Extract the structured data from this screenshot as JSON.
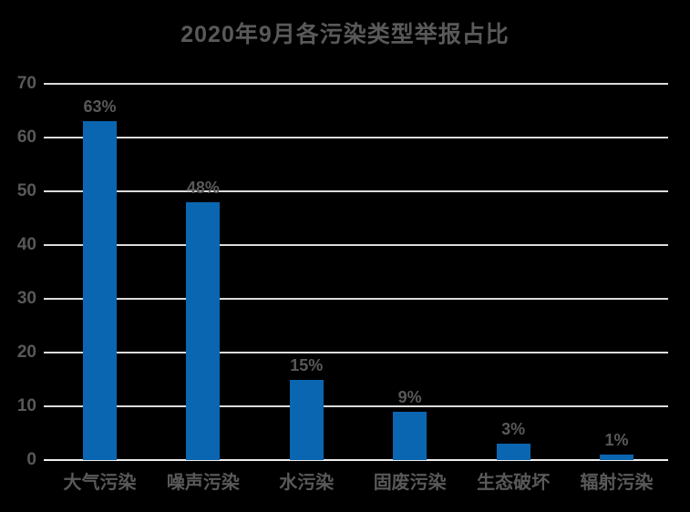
{
  "chart_data": {
    "type": "bar",
    "title": "2020年9月各污染类型举报占比",
    "categories": [
      "大气污染",
      "噪声污染",
      "水污染",
      "固废污染",
      "生态破坏",
      "辐射污染"
    ],
    "values": [
      63,
      48,
      15,
      9,
      3,
      1
    ],
    "value_labels": [
      "63%",
      "48%",
      "15%",
      "9%",
      "3%",
      "1%"
    ],
    "xlabel": "",
    "ylabel": "",
    "ylim": [
      0,
      70
    ],
    "yticks": [
      0,
      10,
      20,
      30,
      40,
      50,
      60,
      70
    ],
    "grid": true,
    "legend": "none",
    "colors": {
      "background": "#000000",
      "bar": "#0b66b1",
      "text": "#595959",
      "gridline": "#dcdcdc",
      "axis_line": "#efefef"
    }
  }
}
